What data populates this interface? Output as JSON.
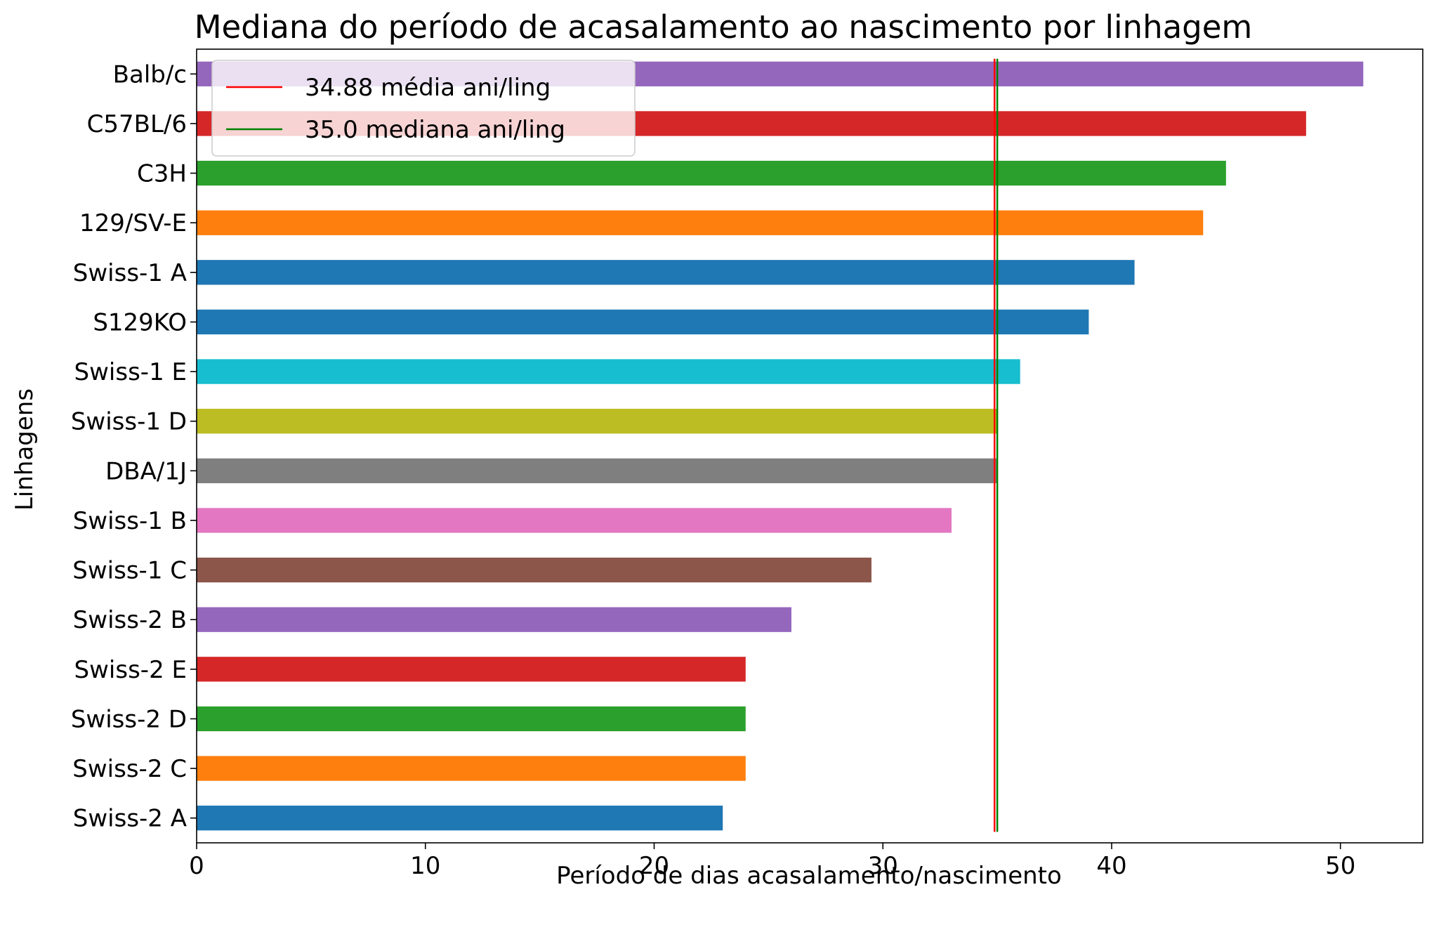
{
  "chart_data": {
    "type": "bar",
    "orientation": "horizontal",
    "title": "Mediana do período de acasalamento ao nascimento por linhagem",
    "xlabel": "Período de dias acasalamento/nascimento",
    "ylabel": "Linhagens",
    "xlim": [
      0,
      53.6
    ],
    "xticks": [
      0,
      10,
      20,
      30,
      40,
      50
    ],
    "grid": false,
    "legend_position": "top-left",
    "categories": [
      "Balb/c",
      "C57BL/6",
      "C3H",
      "129/SV-E",
      "Swiss-1 A",
      "S129KO",
      "Swiss-1 E",
      "Swiss-1 D",
      "DBA/1J",
      "Swiss-1 B",
      "Swiss-1 C",
      "Swiss-2 B",
      "Swiss-2 E",
      "Swiss-2 D",
      "Swiss-2 C",
      "Swiss-2 A"
    ],
    "values": [
      51,
      48.5,
      45,
      44,
      41,
      39,
      36,
      35,
      35,
      33,
      29.5,
      26,
      24,
      24,
      24,
      23
    ],
    "colors": [
      "#9467bd",
      "#d62728",
      "#2ca02c",
      "#ff7f0e",
      "#1f77b4",
      "#1f77b4",
      "#17becf",
      "#bcbd22",
      "#7f7f7f",
      "#e377c2",
      "#8c564b",
      "#9467bd",
      "#d62728",
      "#2ca02c",
      "#ff7f0e",
      "#1f77b4"
    ],
    "reference_lines": [
      {
        "label": "34.88 média ani/ling",
        "value": 34.88,
        "color": "#ff0000"
      },
      {
        "label": "35.0 mediana ani/ling",
        "value": 35.0,
        "color": "#008000"
      }
    ]
  }
}
